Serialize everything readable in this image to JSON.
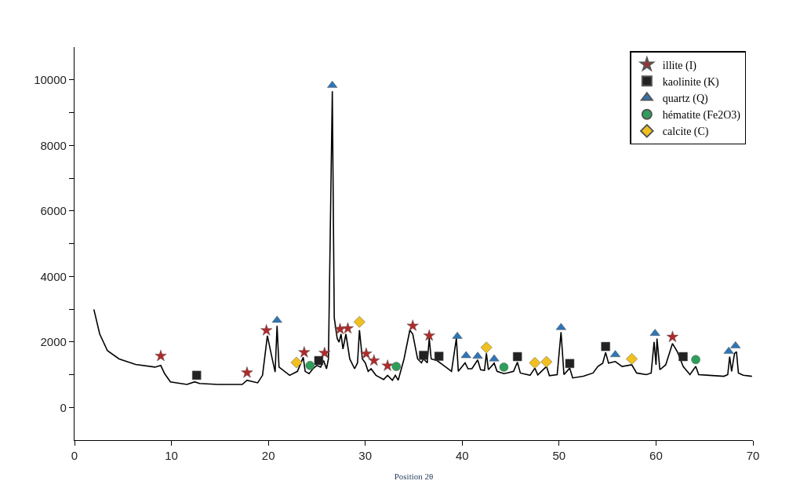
{
  "chart_data": {
    "type": "line",
    "xlabel": "Position 2θ",
    "xlim": [
      0,
      70
    ],
    "xticks": [
      0,
      10,
      20,
      30,
      40,
      50,
      60,
      70
    ],
    "ylim": [
      -1000,
      11000
    ],
    "yticks": [
      0,
      {
        "value": 1000,
        "label": null
      },
      2000,
      {
        "value": 3000,
        "label": null
      },
      4000,
      {
        "value": 5000,
        "label": null
      },
      6000,
      {
        "value": 7000,
        "label": null
      },
      8000,
      {
        "value": 9000,
        "label": null
      },
      10000
    ],
    "legend": "top right",
    "series": [
      {
        "color": "#000000",
        "marker": "none",
        "line_style": "solid",
        "x": [
          2.0,
          2.6,
          3.4,
          4.6,
          6.3,
          8.3,
          8.9,
          9.3,
          9.9,
          11.6,
          12.4,
          12.9,
          14.8,
          17.3,
          17.8,
          18.9,
          19.4,
          19.9,
          20.4,
          20.7,
          20.9,
          21.1,
          22.2,
          23.0,
          23.6,
          23.8,
          24.2,
          24.6,
          25.0,
          25.4,
          25.7,
          26.0,
          26.2,
          26.6,
          26.8,
          27.1,
          27.3,
          27.5,
          27.7,
          28.0,
          28.4,
          28.9,
          29.2,
          29.4,
          29.7,
          30.0,
          30.3,
          30.6,
          31.1,
          31.9,
          32.3,
          32.8,
          33.1,
          33.4,
          34.0,
          34.6,
          34.9,
          35.4,
          35.8,
          36.0,
          36.4,
          36.6,
          36.8,
          37.4,
          38.1,
          38.9,
          39.4,
          39.6,
          40.3,
          40.6,
          41.0,
          41.6,
          41.9,
          42.3,
          42.5,
          42.7,
          43.3,
          43.6,
          44.3,
          44.6,
          45.3,
          45.7,
          46.0,
          47.0,
          47.5,
          47.8,
          48.7,
          49.0,
          49.8,
          50.2,
          50.5,
          51.1,
          51.4,
          52.5,
          53.5,
          54.0,
          54.5,
          54.8,
          55.1,
          55.8,
          56.5,
          57.5,
          58.0,
          59.0,
          59.5,
          59.8,
          60.0,
          60.1,
          60.4,
          61.0,
          61.7,
          62.2,
          62.8,
          63.5,
          64.1,
          64.4,
          65.5,
          67.0,
          67.4,
          67.6,
          67.8,
          68.1,
          68.3,
          68.5,
          69.0,
          69.9
        ],
        "values": [
          2990,
          2240,
          1730,
          1480,
          1310,
          1230,
          1280,
          1030,
          780,
          700,
          780,
          730,
          700,
          700,
          830,
          750,
          980,
          2190,
          1480,
          1080,
          2490,
          1230,
          980,
          1100,
          1530,
          1100,
          1030,
          1180,
          1280,
          1230,
          1430,
          1180,
          1480,
          9650,
          2740,
          2110,
          1990,
          2240,
          1780,
          2240,
          1480,
          1180,
          1360,
          2360,
          1480,
          1360,
          1100,
          1180,
          980,
          850,
          980,
          830,
          980,
          830,
          1480,
          2360,
          2240,
          1480,
          1360,
          1480,
          1360,
          2110,
          1480,
          1430,
          1280,
          1100,
          2110,
          1100,
          1360,
          1180,
          1180,
          1450,
          1150,
          1130,
          1650,
          1150,
          1350,
          1100,
          1030,
          1050,
          1100,
          1380,
          1050,
          980,
          1200,
          990,
          1250,
          970,
          1000,
          2300,
          1000,
          1200,
          900,
          950,
          1050,
          1250,
          1350,
          1680,
          1350,
          1400,
          1250,
          1300,
          1050,
          1000,
          1050,
          2000,
          1300,
          2100,
          1150,
          1300,
          1950,
          1700,
          1250,
          1000,
          1250,
          1000,
          980,
          950,
          1000,
          1550,
          1100,
          1650,
          1700,
          1050,
          980,
          950
        ]
      },
      {
        "type": "scatter",
        "name": "illite (I)",
        "color": "#b02a2a",
        "marker": "star",
        "x": [
          8.9,
          17.8,
          19.8,
          23.7,
          25.8,
          27.4,
          28.2,
          30.1,
          30.9,
          32.3,
          34.9,
          36.6,
          61.7
        ],
        "values": [
          1570,
          1060,
          2350,
          1680,
          1660,
          2390,
          2410,
          1640,
          1430,
          1270,
          2490,
          2190,
          2150
        ]
      },
      {
        "type": "scatter",
        "name": "kaolinite (K)",
        "color": "#222222",
        "marker": "square",
        "x": [
          12.6,
          25.2,
          36.0,
          37.6,
          45.7,
          51.1,
          54.8,
          62.8
        ],
        "values": [
          980,
          1430,
          1590,
          1560,
          1550,
          1340,
          1860,
          1550
        ]
      },
      {
        "type": "scatter",
        "name": "quartz (Q)",
        "color": "#2e75b6",
        "marker": "triangle",
        "x": [
          20.9,
          26.6,
          39.5,
          40.4,
          41.6,
          43.3,
          50.2,
          55.8,
          59.9,
          67.5,
          68.2
        ],
        "values": [
          2660,
          9830,
          2170,
          1580,
          1560,
          1480,
          2440,
          1610,
          2260,
          1710,
          1880
        ]
      },
      {
        "type": "scatter",
        "name": "hématite (Fe2O3)",
        "color": "#2e9e5b",
        "marker": "circle",
        "x": [
          24.3,
          33.2,
          44.3,
          64.1
        ],
        "values": [
          1280,
          1250,
          1230,
          1460
        ]
      },
      {
        "type": "scatter",
        "name": "calcite (C)",
        "color": "#f0c020",
        "marker": "diamond",
        "x": [
          22.9,
          29.4,
          42.5,
          47.5,
          48.7,
          57.5
        ],
        "values": [
          1370,
          2610,
          1830,
          1360,
          1390,
          1480
        ]
      }
    ]
  }
}
